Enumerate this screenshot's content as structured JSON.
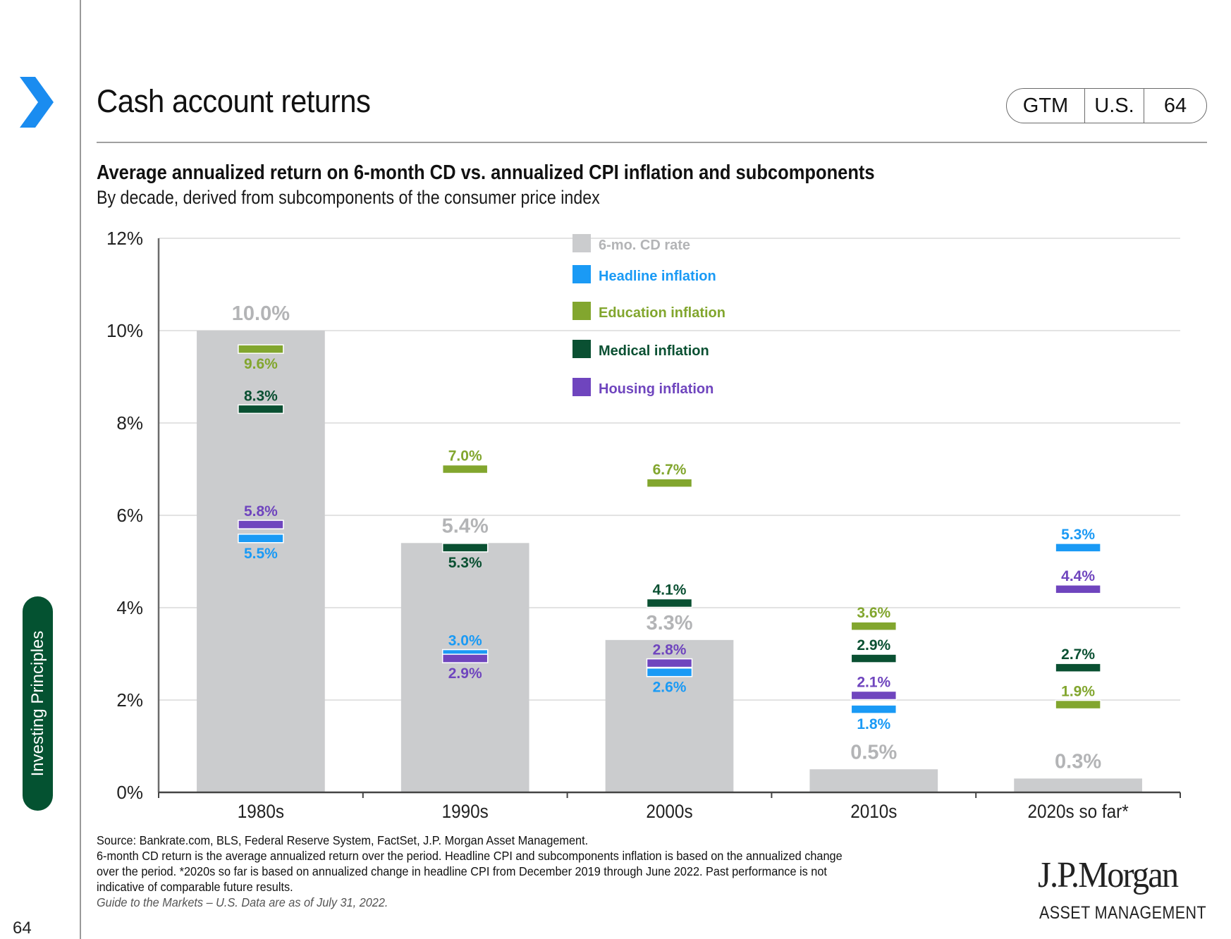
{
  "header": {
    "title": "Cash account returns",
    "pill": [
      "GTM",
      "U.S.",
      "64"
    ]
  },
  "sidebar": {
    "tab_label": "Investing Principles",
    "page_number": "64"
  },
  "colors": {
    "cd": "#CBCCCE",
    "cd_label": "#B3B4B6",
    "headline": "#1A9AF5",
    "education": "#82A62E",
    "medical": "#0A5032",
    "housing": "#6F45BE",
    "accent_chevron": "#1A8CF0",
    "tab_green": "#045231"
  },
  "chart_data": {
    "type": "bar",
    "title": "Average annualized return on 6-month CD vs. annualized CPI inflation and subcomponents",
    "subtitle": "By decade, derived from subcomponents of the consumer price index",
    "xlabel": "",
    "ylabel": "",
    "ylim": [
      0,
      12
    ],
    "yticks": [
      0,
      2,
      4,
      6,
      8,
      10,
      12
    ],
    "ytick_labels": [
      "0%",
      "2%",
      "4%",
      "6%",
      "8%",
      "10%",
      "12%"
    ],
    "grid": true,
    "legend_position": "top-center",
    "categories": [
      "1980s",
      "1990s",
      "2000s",
      "2010s",
      "2020s so far*"
    ],
    "bar_series": {
      "name": "6-mo. CD rate",
      "values": [
        10.0,
        5.4,
        3.3,
        0.5,
        0.3
      ],
      "labels": [
        "10.0%",
        "5.4%",
        "3.3%",
        "0.5%",
        "0.3%"
      ]
    },
    "marker_series": [
      {
        "name": "Headline inflation",
        "key": "headline",
        "values": [
          5.5,
          3.0,
          2.6,
          1.8,
          5.3
        ],
        "labels": [
          "5.5%",
          "3.0%",
          "2.6%",
          "1.8%",
          "5.3%"
        ],
        "label_pos": [
          "below",
          "above",
          "below",
          "below",
          "above"
        ]
      },
      {
        "name": "Education inflation",
        "key": "education",
        "values": [
          9.6,
          7.0,
          6.7,
          3.6,
          1.9
        ],
        "labels": [
          "9.6%",
          "7.0%",
          "6.7%",
          "3.6%",
          "1.9%"
        ],
        "label_pos": [
          "below",
          "above",
          "above",
          "above",
          "above"
        ]
      },
      {
        "name": "Medical inflation",
        "key": "medical",
        "values": [
          8.3,
          5.3,
          4.1,
          2.9,
          2.7
        ],
        "labels": [
          "8.3%",
          "5.3%",
          "4.1%",
          "2.9%",
          "2.7%"
        ],
        "label_pos": [
          "above",
          "below",
          "above",
          "above",
          "above"
        ]
      },
      {
        "name": "Housing inflation",
        "key": "housing",
        "values": [
          5.8,
          2.9,
          2.8,
          2.1,
          4.4
        ],
        "labels": [
          "5.8%",
          "2.9%",
          "2.8%",
          "2.1%",
          "4.4%"
        ],
        "label_pos": [
          "above",
          "below",
          "above",
          "above",
          "above"
        ]
      }
    ],
    "legend": [
      {
        "name": "6-mo. CD rate",
        "key": "cd"
      },
      {
        "name": "Headline inflation",
        "key": "headline"
      },
      {
        "name": "Education inflation",
        "key": "education"
      },
      {
        "name": "Medical inflation",
        "key": "medical"
      },
      {
        "name": "Housing inflation",
        "key": "housing"
      }
    ]
  },
  "footnotes": {
    "source": "Source: Bankrate.com, BLS, Federal Reserve System, FactSet, J.P. Morgan Asset Management.",
    "note_line1": "6-month CD return is the average annualized return over the period. Headline CPI and subcomponents inflation is based on the annualized change",
    "note_line2": "over the period. *2020s so far is based on annualized change in headline CPI from December 2019 through June 2022. Past performance is not",
    "note_line3": "indicative of comparable future results.",
    "guide": "Guide to the Markets – U.S. Data are as of July 31, 2022."
  },
  "logo": {
    "main": "J.P.Morgan",
    "sub": "ASSET MANAGEMENT"
  }
}
